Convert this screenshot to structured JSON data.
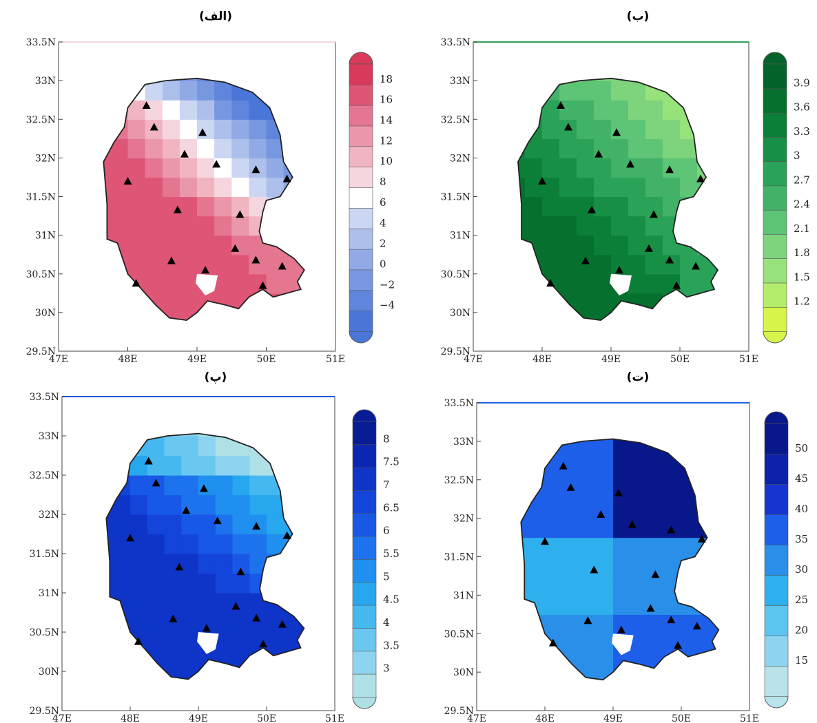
{
  "chart_data": [
    {
      "type": "heatmap",
      "title": "(الف)",
      "xlabel": "",
      "ylabel": "",
      "x_ticks": [
        "47E",
        "48E",
        "49E",
        "50E",
        "51E"
      ],
      "y_ticks": [
        "29.5N",
        "30N",
        "30.5N",
        "31N",
        "31.5N",
        "32N",
        "32.5N",
        "33N",
        "33.5N"
      ],
      "xlim": [
        47,
        51
      ],
      "ylim": [
        29.5,
        33.5
      ],
      "colorbar_labels": [
        "18",
        "16",
        "14",
        "12",
        "10",
        "8",
        "6",
        "4",
        "2",
        "0",
        "−2",
        "−4"
      ],
      "levels": [
        -4,
        -2,
        0,
        2,
        4,
        6,
        8,
        10,
        12,
        14,
        16,
        18
      ],
      "colors": [
        "#4a76d8",
        "#5f86dc",
        "#7797e0",
        "#91aae6",
        "#adc0ec",
        "#cbd6f3",
        "#ffffff",
        "#f6d6de",
        "#f1b5c2",
        "#ea97a9",
        "#e47690",
        "#de5575",
        "#d93a5c"
      ],
      "station_count": 17
    },
    {
      "type": "heatmap",
      "title": "(ب)",
      "xlabel": "",
      "ylabel": "",
      "x_ticks": [
        "47E",
        "48E",
        "49E",
        "50E",
        "51E"
      ],
      "y_ticks": [
        "29.5N",
        "30N",
        "30.5N",
        "31N",
        "31.5N",
        "32N",
        "32.5N",
        "33N",
        "33.5N"
      ],
      "xlim": [
        47,
        51
      ],
      "ylim": [
        29.5,
        33.5
      ],
      "colorbar_labels": [
        "3.9",
        "3.6",
        "3.3",
        "3",
        "2.7",
        "2.4",
        "2.1",
        "1.8",
        "1.5",
        "1.2"
      ],
      "levels": [
        1.2,
        1.5,
        1.8,
        2.1,
        2.4,
        2.7,
        3,
        3.3,
        3.6,
        3.9
      ],
      "colors": [
        "#d6f54a",
        "#b4ec6c",
        "#98e27c",
        "#7dd47c",
        "#5ec476",
        "#42b268",
        "#2aa258",
        "#179046",
        "#0b7f38",
        "#06702e",
        "#04632a"
      ],
      "station_count": 17
    },
    {
      "type": "heatmap",
      "title": "(پ)",
      "xlabel": "",
      "ylabel": "",
      "x_ticks": [
        "47E",
        "48E",
        "49E",
        "50E",
        "51E"
      ],
      "y_ticks": [
        "29.5N",
        "30N",
        "30.5N",
        "31N",
        "31.5N",
        "32N",
        "32.5N",
        "33N",
        "33.5N"
      ],
      "xlim": [
        47,
        51
      ],
      "ylim": [
        29.5,
        33.5
      ],
      "colorbar_labels": [
        "8",
        "7.5",
        "7",
        "6.5",
        "6",
        "5.5",
        "5",
        "4.5",
        "4",
        "3.5",
        "3"
      ],
      "levels": [
        3,
        3.5,
        4,
        4.5,
        5,
        5.5,
        6,
        6.5,
        7,
        7.5,
        8
      ],
      "colors": [
        "#aee0e6",
        "#8ed3ef",
        "#6ac8f0",
        "#45b9ef",
        "#27a7ee",
        "#1f8ff0",
        "#1d73ee",
        "#1858e6",
        "#1345da",
        "#0f34c8",
        "#0b27b2",
        "#081c96"
      ],
      "station_count": 17
    },
    {
      "type": "heatmap",
      "title": "(ت)",
      "xlabel": "",
      "ylabel": "",
      "x_ticks": [
        "47E",
        "48E",
        "49E",
        "50E",
        "51E"
      ],
      "y_ticks": [
        "29.5N",
        "30N",
        "30.5N",
        "31N",
        "31.5N",
        "32N",
        "32.5N",
        "33N",
        "33.5N"
      ],
      "xlim": [
        47,
        51
      ],
      "ylim": [
        29.5,
        33.5
      ],
      "colorbar_labels": [
        "50",
        "45",
        "40",
        "35",
        "30",
        "25",
        "20",
        "15"
      ],
      "levels": [
        15,
        20,
        25,
        30,
        35,
        40,
        45,
        50
      ],
      "colors": [
        "#b8e3ea",
        "#8ed3ef",
        "#5cc4f0",
        "#2fb0ee",
        "#2a8fe8",
        "#1e5fea",
        "#1534d0",
        "#0c22a8",
        "#08188a"
      ],
      "station_count": 17
    }
  ]
}
